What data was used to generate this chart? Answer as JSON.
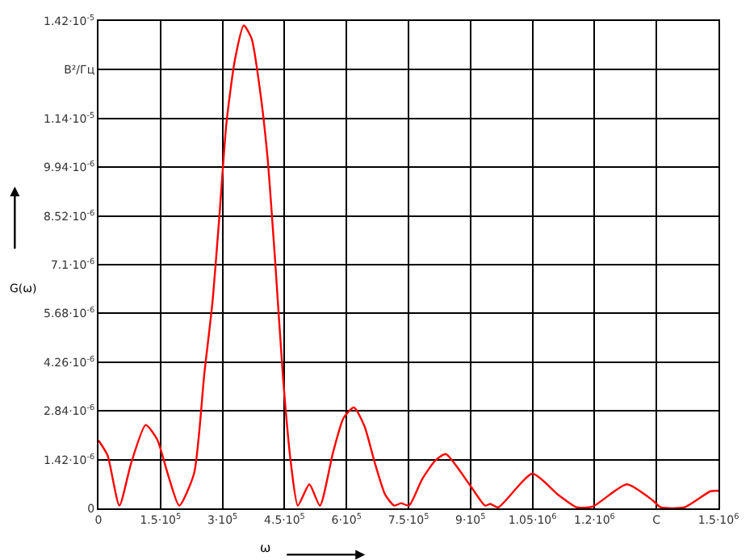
{
  "chart_data": {
    "type": "line",
    "xlabel": "ω",
    "ylabel": "G(ω)",
    "x": [
      0,
      21700,
      50600,
      78800,
      114200,
      142000,
      167500,
      195300,
      231100,
      256200,
      275300,
      292000,
      309500,
      330100,
      351400,
      370400,
      389500,
      408500,
      427500,
      446600,
      465600,
      482400,
      510200,
      535700,
      567300,
      592800,
      617900,
      643400,
      668900,
      694000,
      715700,
      732100,
      751200,
      783100,
      814700,
      840200,
      897300,
      935400,
      948000,
      967000,
      1049600,
      1112800,
      1157400,
      1195400,
      1278000,
      1341200,
      1360300,
      1417400,
      1480900,
      1500000
    ],
    "series": [
      {
        "color": "#ff0000",
        "values": [
          1.98e-06,
          1.55e-06,
          8e-08,
          1.31e-06,
          2.43e-06,
          2.01e-06,
          1.01e-06,
          8e-08,
          1.01e-06,
          3.94e-06,
          5.95e-06,
          8.43e-06,
          1.122e-05,
          1.307e-05,
          1.407e-05,
          1.369e-05,
          1.23e-05,
          1.029e-05,
          7.19e-06,
          3.79e-06,
          1.31e-06,
          8e-08,
          7e-07,
          8e-08,
          1.62e-06,
          2.63e-06,
          2.94e-06,
          2.4e-06,
          1.31e-06,
          3.9e-07,
          8e-08,
          1.5e-07,
          8e-08,
          8.5e-07,
          1.39e-06,
          1.58e-06,
          7e-07,
          8e-08,
          1.3e-07,
          3e-08,
          1.01e-06,
          3.9e-07,
          3e-08,
          5e-08,
          7e-07,
          2.3e-07,
          3e-08,
          3e-08,
          5e-07,
          5.1e-07
        ]
      }
    ],
    "xlim": [
      0,
      1500000
    ],
    "xticks": [
      0,
      {
        "value": 150000,
        "label": "1.5·10$^{5}$"
      },
      {
        "value": 300000,
        "label": "3·10$^{5}$"
      },
      {
        "value": 450000,
        "label": "4.5·10$^{5}$"
      },
      {
        "value": 600000,
        "label": "6·10$^{5}$"
      },
      {
        "value": 750000,
        "label": "7.5·10$^{5}$"
      },
      {
        "value": 900000,
        "label": "9·10$^{5}$"
      },
      {
        "value": 1050000,
        "label": "1.05·10$^{6}$"
      },
      {
        "value": 1200000,
        "label": "1.2·10$^{6}$"
      },
      {
        "value": 1350000,
        "label": "C"
      },
      {
        "value": 1500000,
        "label": "1.5·10$^{6}$"
      }
    ],
    "ylim": [
      0,
      1.42e-05
    ],
    "yticks": [
      0,
      {
        "value": 1.42e-06,
        "label": "1.42·10$^{-6}$"
      },
      {
        "value": 2.84e-06,
        "label": "2.84·10$^{-6}$"
      },
      {
        "value": 4.26e-06,
        "label": "4.26·10$^{-6}$"
      },
      {
        "value": 5.68e-06,
        "label": "5.68·10$^{-6}$"
      },
      {
        "value": 7.1e-06,
        "label": "7.1·10$^{-6}$"
      },
      {
        "value": 8.52e-06,
        "label": "8.52·10$^{-6}$"
      },
      {
        "value": 9.94e-06,
        "label": "9.94·10$^{-6}$"
      },
      {
        "value": 1.136e-05,
        "label": "1.14·10$^{-5}$"
      },
      {
        "value": 1.278e-05,
        "label": "В²/Гц"
      },
      {
        "value": 1.42e-05,
        "label": "1.42·10$^{-5}$"
      }
    ],
    "grid": true,
    "marker": "none",
    "line_style": "solid"
  }
}
